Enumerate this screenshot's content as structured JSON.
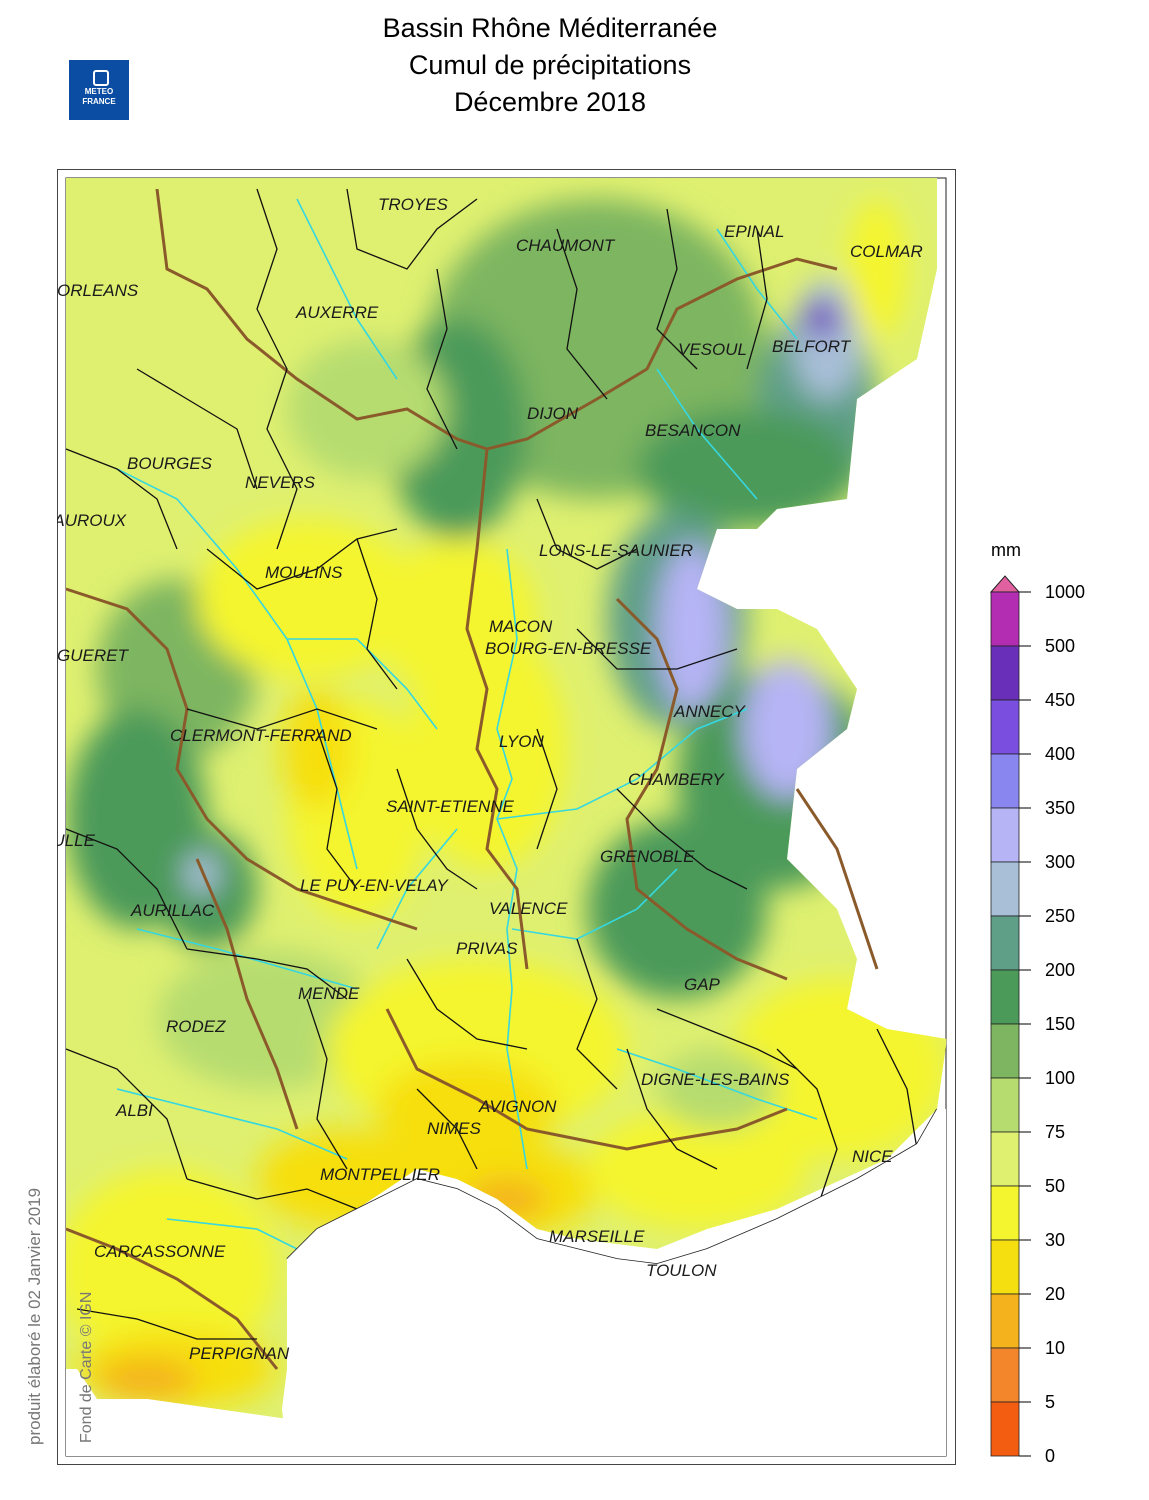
{
  "title": {
    "line1": "Bassin Rhône Méditerranée",
    "line2": "Cumul de précipitations",
    "line3": "Décembre 2018"
  },
  "logo": {
    "line1": "METEO",
    "line2": "FRANCE"
  },
  "produced_note": "produit élaboré le 02 Janvier 2019",
  "credit_note": "Fond de Carte © IGN",
  "legend": {
    "unit": "mm",
    "labels": [
      "1000",
      "500",
      "450",
      "400",
      "350",
      "300",
      "250",
      "200",
      "150",
      "100",
      "75",
      "50",
      "30",
      "20",
      "10",
      "5",
      "0"
    ],
    "colors": [
      "#b32db3",
      "#6a2fb8",
      "#7a4fe0",
      "#8a86f0",
      "#b6b4f5",
      "#a9bfd8",
      "#5f9f88",
      "#4c9a5a",
      "#7db560",
      "#b6dc70",
      "#dff070",
      "#f4f52e",
      "#f6df10",
      "#f4b31c",
      "#f3852a",
      "#f25d12"
    ],
    "arrow_color": "#e060a0"
  },
  "cities": [
    {
      "name": "TROYES"
    },
    {
      "name": "CHAUMONT"
    },
    {
      "name": "EPINAL"
    },
    {
      "name": "COLMAR"
    },
    {
      "name": "ORLEANS"
    },
    {
      "name": "AUXERRE"
    },
    {
      "name": "VESOUL"
    },
    {
      "name": "BELFORT"
    },
    {
      "name": "DIJON"
    },
    {
      "name": "BESANCON"
    },
    {
      "name": "BOURGES"
    },
    {
      "name": "NEVERS"
    },
    {
      "name": "CHATEAUROUX"
    },
    {
      "name": "LONS-LE-SAUNIER"
    },
    {
      "name": "MOULINS"
    },
    {
      "name": "MACON"
    },
    {
      "name": "BOURG-EN-BRESSE"
    },
    {
      "name": "GUERET"
    },
    {
      "name": "ANNECY"
    },
    {
      "name": "CLERMONT-FERRAND"
    },
    {
      "name": "LYON"
    },
    {
      "name": "CHAMBERY"
    },
    {
      "name": "SAINT-ETIENNE"
    },
    {
      "name": "TULLE"
    },
    {
      "name": "GRENOBLE"
    },
    {
      "name": "LE PUY-EN-VELAY"
    },
    {
      "name": "AURILLAC"
    },
    {
      "name": "VALENCE"
    },
    {
      "name": "PRIVAS"
    },
    {
      "name": "GAP"
    },
    {
      "name": "MENDE"
    },
    {
      "name": "RODEZ"
    },
    {
      "name": "DIGNE-LES-BAINS"
    },
    {
      "name": "ALBI"
    },
    {
      "name": "AVIGNON"
    },
    {
      "name": "NIMES"
    },
    {
      "name": "NICE"
    },
    {
      "name": "MONTPELLIER"
    },
    {
      "name": "CARCASSONNE"
    },
    {
      "name": "MARSEILLE"
    },
    {
      "name": "TOULON"
    },
    {
      "name": "PERPIGNAN"
    }
  ]
}
